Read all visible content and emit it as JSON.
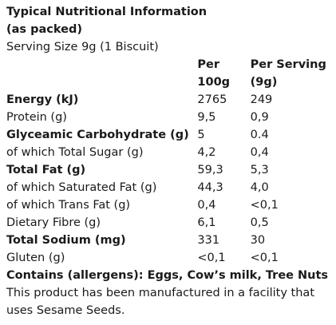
{
  "title_line1": "Typical Nutritional Information",
  "title_line2": "(as packed)",
  "serving_size": "Serving Size 9g (1 Biscuit)",
  "columns": {
    "per100_line1": "Per",
    "per100_line2": "100g",
    "perserving_line1": "Per Serving",
    "perserving_line2": "(9g)"
  },
  "rows": [
    {
      "name": "Energy (kJ)",
      "per100": "2765",
      "perserving": "249",
      "bold": true
    },
    {
      "name": "Protein (g)",
      "per100": "9,5",
      "perserving": "0,9",
      "bold": false
    },
    {
      "name": "Glyceamic Carbohydrate (g)",
      "per100": "5",
      "perserving": "0.4",
      "bold": true
    },
    {
      "name": "of which Total Sugar (g)",
      "per100": "4,2",
      "perserving": "0,4",
      "bold": false
    },
    {
      "name": "Total Fat (g)",
      "per100": "59,3",
      "perserving": "5,3",
      "bold": true
    },
    {
      "name": "of which Saturated Fat (g)",
      "per100": "44,3",
      "perserving": "4,0",
      "bold": false
    },
    {
      "name": "of which Trans Fat (g)",
      "per100": "0,4",
      "perserving": "<0,1",
      "bold": false
    },
    {
      "name": "Dietary Fibre (g)",
      "per100": "6,1",
      "perserving": "0,5",
      "bold": false
    },
    {
      "name": "Total Sodium (mg)",
      "per100": "331",
      "perserving": "30",
      "bold": true
    },
    {
      "name": "Gluten (g)",
      "per100": "<0,1",
      "perserving": "<0,1",
      "bold": false
    }
  ],
  "contains": "Contains (allergens): Eggs, Cow’s milk, Tree Nuts",
  "note": "This product has been manufactured in a facility that uses Sesame Seeds."
}
